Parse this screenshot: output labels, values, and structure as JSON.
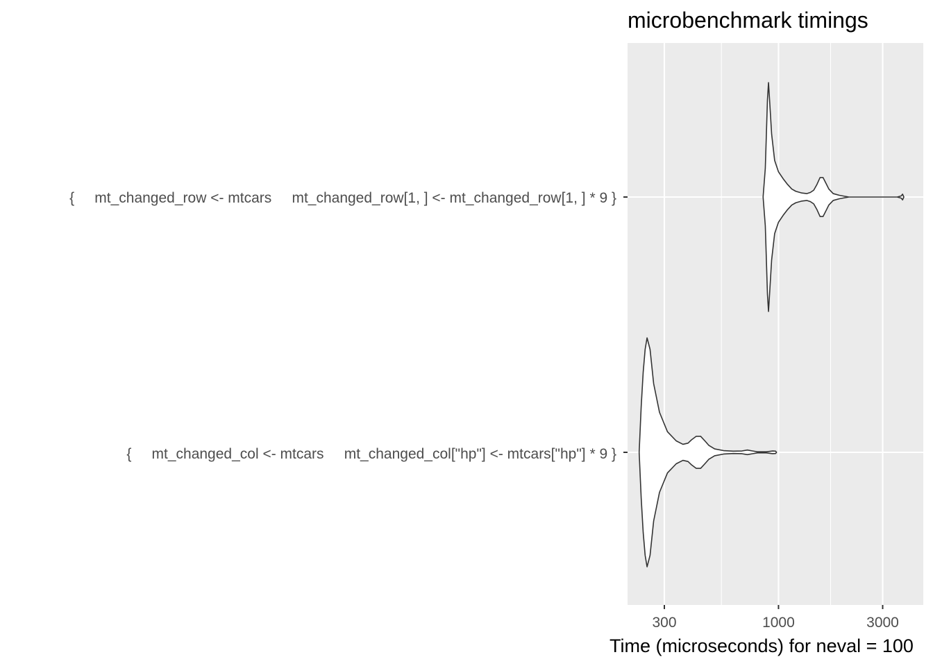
{
  "chart_data": {
    "type": "violin",
    "title": "microbenchmark timings",
    "xlabel": "Time (microseconds) for neval = 100",
    "ylabel": "",
    "x_scale": "log10",
    "xlim": [
      220,
      4000
    ],
    "x_ticks": [
      300,
      1000,
      3000
    ],
    "x_tick_labels": [
      "300",
      "1000",
      "3000"
    ],
    "grid": true,
    "legend": "none",
    "categories": [
      "{     mt_changed_row <- mtcars     mt_changed_row[1, ] <- mt_changed_row[1, ] * 9 }",
      "{     mt_changed_col <- mtcars     mt_changed_col[\"hp\"] <- mtcars[\"hp\"] * 9 }"
    ],
    "series": [
      {
        "category_index": 0,
        "min": 850,
        "max": 3750,
        "profile": [
          [
            850,
            0.0
          ],
          [
            870,
            0.25
          ],
          [
            880,
            0.55
          ],
          [
            890,
            0.85
          ],
          [
            900,
            1.0
          ],
          [
            910,
            0.85
          ],
          [
            930,
            0.55
          ],
          [
            960,
            0.32
          ],
          [
            1000,
            0.22
          ],
          [
            1050,
            0.16
          ],
          [
            1100,
            0.11
          ],
          [
            1150,
            0.07
          ],
          [
            1200,
            0.05
          ],
          [
            1280,
            0.035
          ],
          [
            1350,
            0.03
          ],
          [
            1400,
            0.04
          ],
          [
            1450,
            0.06
          ],
          [
            1500,
            0.11
          ],
          [
            1550,
            0.17
          ],
          [
            1600,
            0.17
          ],
          [
            1650,
            0.12
          ],
          [
            1700,
            0.07
          ],
          [
            1780,
            0.03
          ],
          [
            1900,
            0.015
          ],
          [
            2100,
            0.0
          ],
          [
            2500,
            0.0
          ],
          [
            3000,
            0.0
          ],
          [
            3500,
            0.0
          ],
          [
            3650,
            0.01
          ],
          [
            3700,
            0.025
          ],
          [
            3750,
            0.0
          ]
        ]
      },
      {
        "category_index": 1,
        "min": 230,
        "max": 980,
        "profile": [
          [
            230,
            0.0
          ],
          [
            235,
            0.4
          ],
          [
            240,
            0.7
          ],
          [
            245,
            0.9
          ],
          [
            250,
            1.0
          ],
          [
            258,
            0.9
          ],
          [
            268,
            0.6
          ],
          [
            285,
            0.35
          ],
          [
            310,
            0.18
          ],
          [
            340,
            0.1
          ],
          [
            365,
            0.07
          ],
          [
            385,
            0.08
          ],
          [
            400,
            0.11
          ],
          [
            420,
            0.14
          ],
          [
            440,
            0.14
          ],
          [
            460,
            0.1
          ],
          [
            480,
            0.06
          ],
          [
            510,
            0.03
          ],
          [
            560,
            0.015
          ],
          [
            620,
            0.01
          ],
          [
            680,
            0.012
          ],
          [
            720,
            0.02
          ],
          [
            760,
            0.012
          ],
          [
            800,
            0.005
          ],
          [
            880,
            0.005
          ],
          [
            940,
            0.012
          ],
          [
            970,
            0.01
          ],
          [
            980,
            0.0
          ]
        ]
      }
    ]
  }
}
